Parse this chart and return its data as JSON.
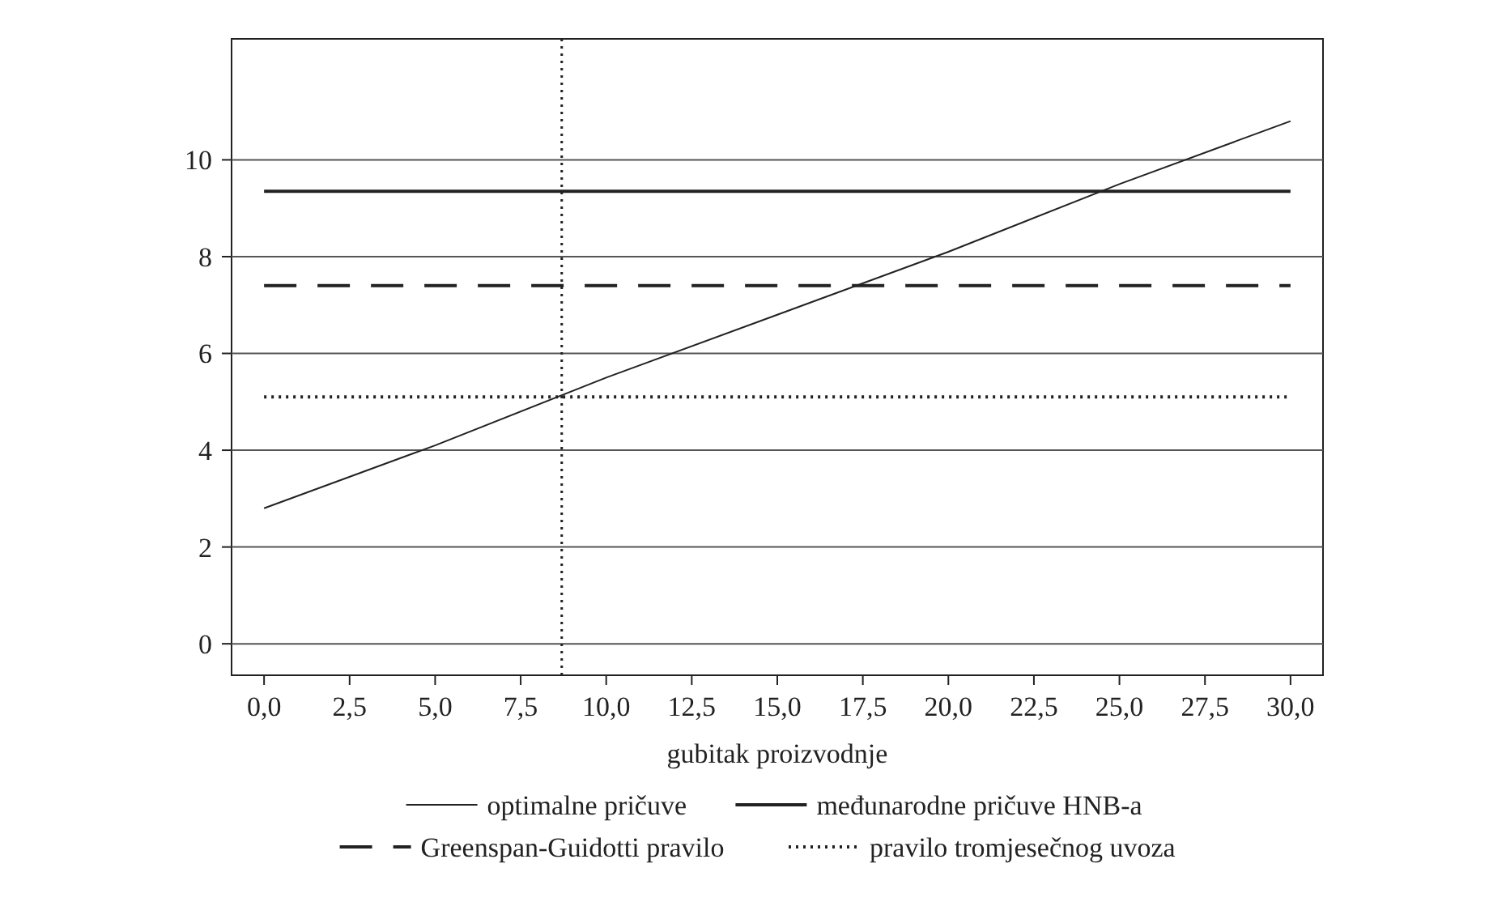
{
  "chart_data": {
    "type": "line",
    "xlabel": "gubitak proizvodnje",
    "xlim": [
      -0.95,
      30.95
    ],
    "ylim": [
      -0.65,
      12.5
    ],
    "xticks": [
      {
        "value": 0,
        "label": "0,0"
      },
      {
        "value": 2.5,
        "label": "2,5"
      },
      {
        "value": 5,
        "label": "5,0"
      },
      {
        "value": 7.5,
        "label": "7,5"
      },
      {
        "value": 10,
        "label": "10,0"
      },
      {
        "value": 12.5,
        "label": "12,5"
      },
      {
        "value": 15,
        "label": "15,0"
      },
      {
        "value": 17.5,
        "label": "17,5"
      },
      {
        "value": 20,
        "label": "20,0"
      },
      {
        "value": 22.5,
        "label": "22,5"
      },
      {
        "value": 25,
        "label": "25,0"
      },
      {
        "value": 27.5,
        "label": "27,5"
      },
      {
        "value": 30,
        "label": "30,0"
      }
    ],
    "yticks": [
      0,
      2,
      4,
      6,
      8,
      10
    ],
    "grid": "y",
    "legend": "bottom",
    "marker": "none",
    "x": [
      0,
      5,
      10,
      15,
      20,
      25,
      30
    ],
    "series": [
      {
        "name": "optimalne pričuve",
        "color": "#222222",
        "line_style": "solid",
        "values": [
          2.8,
          4.1,
          5.5,
          6.8,
          8.1,
          9.5,
          10.8
        ]
      },
      {
        "name": "međunarodne pričuve HNB-a",
        "color": "#222222",
        "line_style": "solid",
        "values": [
          9.35,
          9.35,
          9.35,
          9.35,
          9.35,
          9.35,
          9.35
        ]
      },
      {
        "name": "Greenspan-Guidotti pravilo",
        "color": "#222222",
        "line_style": "dashed",
        "values": [
          7.4,
          7.4,
          7.4,
          7.4,
          7.4,
          7.4,
          7.4
        ]
      },
      {
        "name": "pravilo tromjesečnog uvoza",
        "color": "#222222",
        "line_style": "dotted",
        "values": [
          5.1,
          5.1,
          5.1,
          5.1,
          5.1,
          5.1,
          5.1
        ]
      }
    ],
    "ref_lines": [
      {
        "axis": "x",
        "value": 8.7,
        "color": "#222222",
        "line_style": "dotted"
      }
    ]
  }
}
